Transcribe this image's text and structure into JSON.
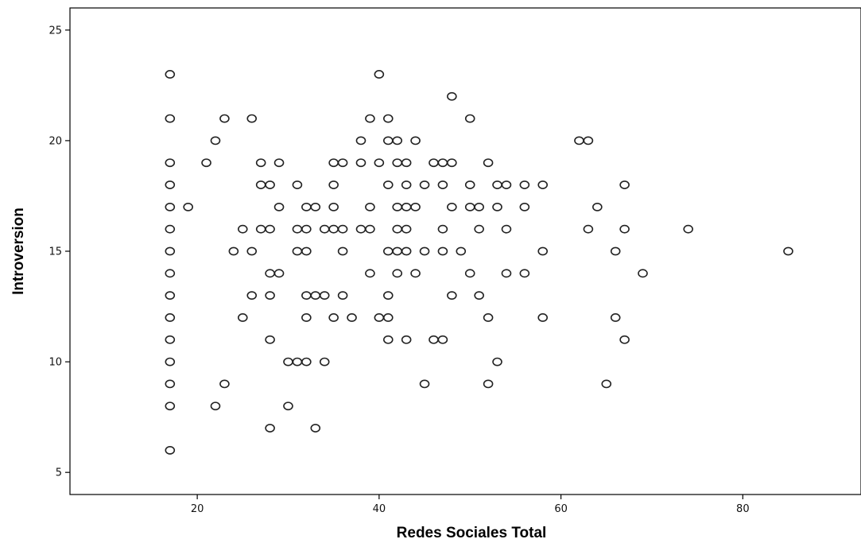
{
  "chart_data": {
    "type": "scatter",
    "title": "",
    "xlabel": "Redes Sociales Total",
    "ylabel": "Introversion",
    "xlim": [
      6,
      93
    ],
    "ylim": [
      4,
      26
    ],
    "xticks": [
      20,
      40,
      60,
      80
    ],
    "yticks": [
      5,
      10,
      15,
      20,
      25
    ],
    "xtick_labels": [
      "20",
      "40",
      "60",
      "80"
    ],
    "ytick_labels": [
      "5",
      "10",
      "15",
      "20",
      "25"
    ],
    "grid": false,
    "legend": "none",
    "marker": "hollow-circle",
    "points": [
      [
        17,
        23
      ],
      [
        17,
        21
      ],
      [
        17,
        19
      ],
      [
        17,
        18
      ],
      [
        17,
        17
      ],
      [
        17,
        16
      ],
      [
        17,
        15
      ],
      [
        17,
        14
      ],
      [
        17,
        13
      ],
      [
        17,
        12
      ],
      [
        17,
        11
      ],
      [
        17,
        10
      ],
      [
        17,
        9
      ],
      [
        17,
        8
      ],
      [
        17,
        6
      ],
      [
        19,
        17
      ],
      [
        21,
        19
      ],
      [
        22,
        20
      ],
      [
        22,
        8
      ],
      [
        23,
        21
      ],
      [
        23,
        9
      ],
      [
        24,
        15
      ],
      [
        25,
        16
      ],
      [
        25,
        12
      ],
      [
        26,
        21
      ],
      [
        26,
        15
      ],
      [
        26,
        13
      ],
      [
        27,
        19
      ],
      [
        27,
        18
      ],
      [
        27,
        16
      ],
      [
        28,
        18
      ],
      [
        28,
        16
      ],
      [
        28,
        14
      ],
      [
        28,
        13
      ],
      [
        28,
        11
      ],
      [
        28,
        7
      ],
      [
        29,
        19
      ],
      [
        29,
        17
      ],
      [
        29,
        14
      ],
      [
        30,
        10
      ],
      [
        30,
        8
      ],
      [
        31,
        18
      ],
      [
        31,
        16
      ],
      [
        31,
        15
      ],
      [
        31,
        10
      ],
      [
        32,
        17
      ],
      [
        32,
        16
      ],
      [
        32,
        15
      ],
      [
        32,
        13
      ],
      [
        32,
        12
      ],
      [
        32,
        10
      ],
      [
        33,
        17
      ],
      [
        33,
        13
      ],
      [
        33,
        7
      ],
      [
        34,
        16
      ],
      [
        34,
        13
      ],
      [
        34,
        10
      ],
      [
        35,
        19
      ],
      [
        35,
        18
      ],
      [
        35,
        17
      ],
      [
        35,
        16
      ],
      [
        35,
        12
      ],
      [
        36,
        19
      ],
      [
        36,
        16
      ],
      [
        36,
        15
      ],
      [
        36,
        13
      ],
      [
        37,
        12
      ],
      [
        38,
        20
      ],
      [
        38,
        19
      ],
      [
        38,
        16
      ],
      [
        39,
        21
      ],
      [
        39,
        17
      ],
      [
        39,
        16
      ],
      [
        39,
        14
      ],
      [
        40,
        23
      ],
      [
        40,
        19
      ],
      [
        40,
        12
      ],
      [
        41,
        21
      ],
      [
        41,
        20
      ],
      [
        41,
        18
      ],
      [
        41,
        15
      ],
      [
        41,
        13
      ],
      [
        41,
        12
      ],
      [
        41,
        11
      ],
      [
        42,
        20
      ],
      [
        42,
        19
      ],
      [
        42,
        17
      ],
      [
        42,
        16
      ],
      [
        42,
        15
      ],
      [
        42,
        14
      ],
      [
        43,
        19
      ],
      [
        43,
        18
      ],
      [
        43,
        17
      ],
      [
        43,
        16
      ],
      [
        43,
        15
      ],
      [
        43,
        11
      ],
      [
        44,
        20
      ],
      [
        44,
        17
      ],
      [
        44,
        14
      ],
      [
        45,
        18
      ],
      [
        45,
        15
      ],
      [
        45,
        9
      ],
      [
        46,
        19
      ],
      [
        46,
        11
      ],
      [
        47,
        19
      ],
      [
        47,
        18
      ],
      [
        47,
        16
      ],
      [
        47,
        15
      ],
      [
        47,
        11
      ],
      [
        48,
        22
      ],
      [
        48,
        19
      ],
      [
        48,
        17
      ],
      [
        48,
        13
      ],
      [
        49,
        15
      ],
      [
        50,
        21
      ],
      [
        50,
        18
      ],
      [
        50,
        17
      ],
      [
        50,
        14
      ],
      [
        51,
        17
      ],
      [
        51,
        16
      ],
      [
        51,
        13
      ],
      [
        52,
        19
      ],
      [
        52,
        12
      ],
      [
        52,
        9
      ],
      [
        53,
        18
      ],
      [
        53,
        17
      ],
      [
        53,
        10
      ],
      [
        54,
        18
      ],
      [
        54,
        16
      ],
      [
        54,
        14
      ],
      [
        56,
        18
      ],
      [
        56,
        17
      ],
      [
        56,
        14
      ],
      [
        58,
        18
      ],
      [
        58,
        15
      ],
      [
        58,
        12
      ],
      [
        62,
        20
      ],
      [
        63,
        20
      ],
      [
        63,
        16
      ],
      [
        64,
        17
      ],
      [
        65,
        9
      ],
      [
        66,
        15
      ],
      [
        66,
        12
      ],
      [
        67,
        18
      ],
      [
        67,
        16
      ],
      [
        67,
        11
      ],
      [
        69,
        14
      ],
      [
        74,
        16
      ],
      [
        85,
        15
      ]
    ]
  }
}
